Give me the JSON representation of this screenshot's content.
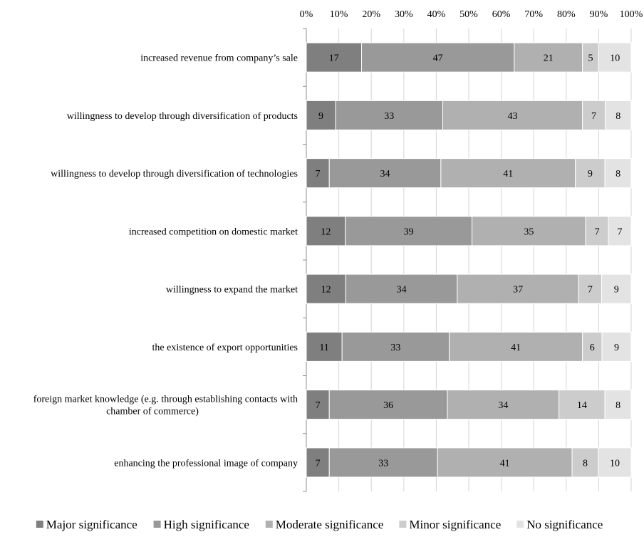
{
  "chart_data": {
    "type": "bar",
    "orientation": "horizontal",
    "stacked": "percent",
    "x_ticks": [
      "0%",
      "10%",
      "20%",
      "30%",
      "40%",
      "50%",
      "60%",
      "70%",
      "80%",
      "90%",
      "100%"
    ],
    "xlim": [
      0,
      100
    ],
    "grid": true,
    "legend_position": "bottom",
    "categories": [
      "increased revenue from company’s sale",
      "willingness to develop through diversification of products",
      "willingness to develop through diversification of technologies",
      "increased competition on domestic market",
      "willingness to expand the market",
      "the existence of export opportunities",
      "foreign market knowledge (e.g. through establishing contacts with chamber of commerce)",
      "enhancing the professional image of company"
    ],
    "category_lines": [
      [
        "increased revenue from company’s sale"
      ],
      [
        "willingness to develop through diversification of products"
      ],
      [
        "willingness to develop through diversification of technologies"
      ],
      [
        "increased competition on domestic market"
      ],
      [
        "willingness to expand the market"
      ],
      [
        "the existence of export opportunities"
      ],
      [
        "foreign market knowledge (e.g. through establishing contacts with",
        "chamber of commerce)"
      ],
      [
        "enhancing the professional image of company"
      ]
    ],
    "series": [
      {
        "name": "Major significance",
        "color": "#7f7f7f",
        "values": [
          17,
          9,
          7,
          12,
          12,
          11,
          7,
          7
        ]
      },
      {
        "name": "High significance",
        "color": "#999999",
        "values": [
          47,
          33,
          34,
          39,
          34,
          33,
          36,
          33
        ]
      },
      {
        "name": "Moderate significance",
        "color": "#b0b0b0",
        "values": [
          21,
          43,
          41,
          35,
          37,
          41,
          34,
          41
        ]
      },
      {
        "name": "Minor significance",
        "color": "#cccccc",
        "values": [
          5,
          7,
          9,
          7,
          7,
          6,
          14,
          8
        ]
      },
      {
        "name": "No significance",
        "color": "#e3e3e3",
        "values": [
          10,
          8,
          8,
          7,
          9,
          9,
          8,
          10
        ]
      }
    ]
  }
}
